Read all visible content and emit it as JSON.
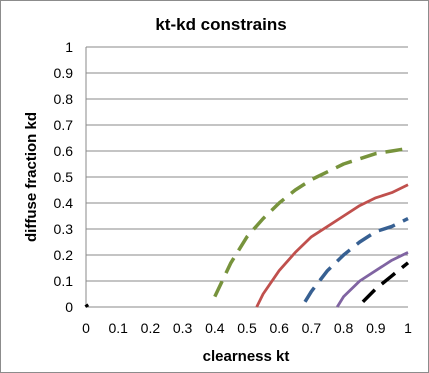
{
  "chart_data": {
    "type": "line",
    "title": "kt-kd constrains",
    "xlabel": "clearness kt",
    "ylabel": "diffuse fraction kd",
    "xlim": [
      0,
      1
    ],
    "ylim": [
      0,
      1
    ],
    "x_ticks": [
      "0",
      "0.1",
      "0.2",
      "0.3",
      "0.4",
      "0.5",
      "0.6",
      "0.7",
      "0.8",
      "0.9",
      "1"
    ],
    "y_ticks": [
      "0",
      "0.1",
      "0.2",
      "0.3",
      "0.4",
      "0.5",
      "0.6",
      "0.7",
      "0.8",
      "0.9",
      "1"
    ],
    "grid": {
      "horizontal": true,
      "vertical": false
    },
    "legend": "none",
    "series": [
      {
        "color": "#77933c",
        "dash": "dashed",
        "x": [
          0.4,
          0.45,
          0.5,
          0.55,
          0.6,
          0.65,
          0.7,
          0.75,
          0.8,
          0.85,
          0.9,
          0.95,
          1.0
        ],
        "y": [
          0.04,
          0.17,
          0.27,
          0.34,
          0.4,
          0.45,
          0.49,
          0.52,
          0.55,
          0.57,
          0.59,
          0.6,
          0.61
        ]
      },
      {
        "color": "#c0504d",
        "dash": "solid",
        "x": [
          0.53,
          0.55,
          0.6,
          0.65,
          0.7,
          0.75,
          0.8,
          0.85,
          0.9,
          0.95,
          1.0
        ],
        "y": [
          0.0,
          0.05,
          0.14,
          0.21,
          0.27,
          0.31,
          0.35,
          0.39,
          0.42,
          0.44,
          0.47
        ]
      },
      {
        "color": "#376092",
        "dash": "dashed",
        "x": [
          0.68,
          0.7,
          0.75,
          0.8,
          0.85,
          0.9,
          0.95,
          1.0
        ],
        "y": [
          0.02,
          0.06,
          0.14,
          0.2,
          0.25,
          0.29,
          0.31,
          0.34
        ]
      },
      {
        "color": "#8064a2",
        "dash": "solid",
        "x": [
          0.78,
          0.8,
          0.85,
          0.9,
          0.95,
          1.0
        ],
        "y": [
          0.0,
          0.04,
          0.1,
          0.14,
          0.18,
          0.21
        ]
      },
      {
        "color": "#000000",
        "dash": "dashed",
        "x": [
          0.86,
          0.9,
          0.95,
          1.0
        ],
        "y": [
          0.02,
          0.07,
          0.12,
          0.17
        ]
      },
      {
        "color": "#000000",
        "dash": "dashed",
        "x": [
          0.0,
          0.005
        ],
        "y": [
          0.01,
          0.0
        ]
      }
    ]
  }
}
